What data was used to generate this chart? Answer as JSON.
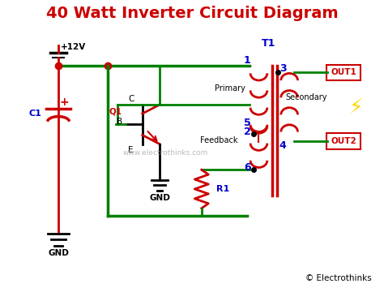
{
  "title": "40 Watt Inverter Circuit Diagram",
  "title_color": "#cc0000",
  "title_fontsize": 14,
  "bg_color": "#ffffff",
  "green": "#008000",
  "red": "#cc0000",
  "blue": "#0000cc",
  "black": "#000000",
  "watermark": "www.electrothinks.com",
  "copyright": "© Electrothinks",
  "xlim": [
    0,
    10
  ],
  "ylim": [
    0,
    8
  ]
}
